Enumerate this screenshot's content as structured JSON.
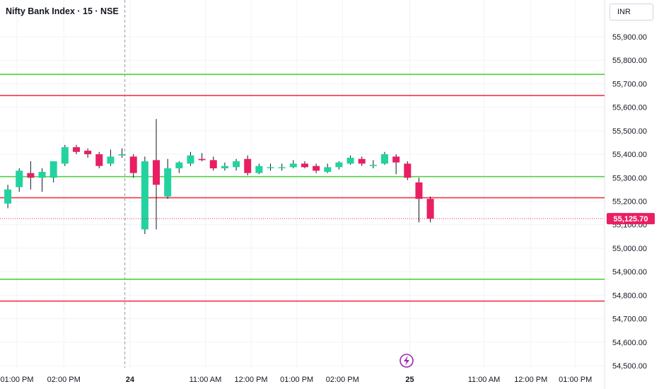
{
  "header": {
    "title": "Nifty Bank Index · 15 · NSE",
    "currency": "INR"
  },
  "colors": {
    "up": "#22d3a0",
    "down": "#e91e63",
    "support_line": "#4cd137",
    "resistance_line": "#f23645",
    "grid": "#f0f3fa",
    "price_tag": "#e91e63"
  },
  "chart_data": {
    "type": "candlestick",
    "y_axis": {
      "ylim": [
        54480,
        55980
      ],
      "ticks": [
        54500,
        54600,
        54700,
        54800,
        54900,
        55000,
        55100,
        55200,
        55300,
        55400,
        55500,
        55600,
        55700,
        55800,
        55900
      ],
      "tick_labels": [
        "54,500.00",
        "54,600.00",
        "54,700.00",
        "54,800.00",
        "54,900.00",
        "55,000.00",
        "55,100.00",
        "55,200.00",
        "55,300.00",
        "55,400.00",
        "55,500.00",
        "55,600.00",
        "55,700.00",
        "55,800.00",
        "55,900.00"
      ]
    },
    "x_axis": {
      "labels": [
        {
          "text": "01:00 PM",
          "slot": 1.3,
          "bold": false
        },
        {
          "text": "02:00 PM",
          "slot": 5.4,
          "bold": false
        },
        {
          "text": "24",
          "slot": 11.2,
          "bold": true
        },
        {
          "text": "11:00 AM",
          "slot": 17.8,
          "bold": false
        },
        {
          "text": "12:00 PM",
          "slot": 21.8,
          "bold": false
        },
        {
          "text": "01:00 PM",
          "slot": 25.8,
          "bold": false
        },
        {
          "text": "02:00 PM",
          "slot": 29.8,
          "bold": false
        },
        {
          "text": "25",
          "slot": 35.7,
          "bold": true
        },
        {
          "text": "11:00 AM",
          "slot": 42.2,
          "bold": false
        },
        {
          "text": "12:00 PM",
          "slot": 46.3,
          "bold": false
        },
        {
          "text": "01:00 PM",
          "slot": 50.2,
          "bold": false
        }
      ],
      "day_separator_slot": 10.75
    },
    "candles": [
      {
        "o": 55190,
        "h": 55270,
        "l": 55170,
        "c": 55250
      },
      {
        "o": 55260,
        "h": 55340,
        "l": 55240,
        "c": 55330
      },
      {
        "o": 55320,
        "h": 55370,
        "l": 55250,
        "c": 55300
      },
      {
        "o": 55300,
        "h": 55340,
        "l": 55240,
        "c": 55325
      },
      {
        "o": 55300,
        "h": 55370,
        "l": 55280,
        "c": 55370
      },
      {
        "o": 55360,
        "h": 55440,
        "l": 55350,
        "c": 55430
      },
      {
        "o": 55430,
        "h": 55440,
        "l": 55400,
        "c": 55410
      },
      {
        "o": 55415,
        "h": 55425,
        "l": 55385,
        "c": 55400
      },
      {
        "o": 55400,
        "h": 55410,
        "l": 55340,
        "c": 55350
      },
      {
        "o": 55360,
        "h": 55420,
        "l": 55350,
        "c": 55390
      },
      {
        "o": 55395,
        "h": 55425,
        "l": 55385,
        "c": 55400
      },
      {
        "o": 55390,
        "h": 55400,
        "l": 55300,
        "c": 55320
      },
      {
        "o": 55080,
        "h": 55390,
        "l": 55060,
        "c": 55370
      },
      {
        "o": 55375,
        "h": 55550,
        "l": 55080,
        "c": 55270
      },
      {
        "o": 55220,
        "h": 55380,
        "l": 55210,
        "c": 55340
      },
      {
        "o": 55340,
        "h": 55370,
        "l": 55320,
        "c": 55365
      },
      {
        "o": 55360,
        "h": 55410,
        "l": 55350,
        "c": 55395
      },
      {
        "o": 55380,
        "h": 55405,
        "l": 55370,
        "c": 55375
      },
      {
        "o": 55375,
        "h": 55390,
        "l": 55330,
        "c": 55340
      },
      {
        "o": 55340,
        "h": 55365,
        "l": 55330,
        "c": 55350
      },
      {
        "o": 55345,
        "h": 55380,
        "l": 55330,
        "c": 55370
      },
      {
        "o": 55380,
        "h": 55395,
        "l": 55310,
        "c": 55320
      },
      {
        "o": 55320,
        "h": 55360,
        "l": 55315,
        "c": 55350
      },
      {
        "o": 55345,
        "h": 55360,
        "l": 55330,
        "c": 55345
      },
      {
        "o": 55345,
        "h": 55360,
        "l": 55330,
        "c": 55345
      },
      {
        "o": 55345,
        "h": 55375,
        "l": 55340,
        "c": 55360
      },
      {
        "o": 55360,
        "h": 55370,
        "l": 55340,
        "c": 55345
      },
      {
        "o": 55350,
        "h": 55360,
        "l": 55320,
        "c": 55330
      },
      {
        "o": 55325,
        "h": 55360,
        "l": 55320,
        "c": 55345
      },
      {
        "o": 55345,
        "h": 55370,
        "l": 55335,
        "c": 55365
      },
      {
        "o": 55360,
        "h": 55395,
        "l": 55355,
        "c": 55385
      },
      {
        "o": 55380,
        "h": 55390,
        "l": 55350,
        "c": 55360
      },
      {
        "o": 55350,
        "h": 55375,
        "l": 55340,
        "c": 55355
      },
      {
        "o": 55360,
        "h": 55410,
        "l": 55355,
        "c": 55400
      },
      {
        "o": 55390,
        "h": 55400,
        "l": 55315,
        "c": 55365
      },
      {
        "o": 55360,
        "h": 55370,
        "l": 55290,
        "c": 55300
      },
      {
        "o": 55280,
        "h": 55300,
        "l": 55110,
        "c": 55210
      },
      {
        "o": 55210,
        "h": 55220,
        "l": 55110,
        "c": 55125.7
      }
    ],
    "horizontal_lines": [
      {
        "value": 55740,
        "role": "support_line"
      },
      {
        "value": 55650,
        "role": "resistance_line"
      },
      {
        "value": 55305,
        "role": "support_line"
      },
      {
        "value": 55215,
        "role": "resistance_line"
      },
      {
        "value": 54868,
        "role": "support_line"
      },
      {
        "value": 54775,
        "role": "resistance_line"
      }
    ],
    "last_price": {
      "value": 55125.7,
      "label": "55,125.70"
    },
    "grid": true
  }
}
